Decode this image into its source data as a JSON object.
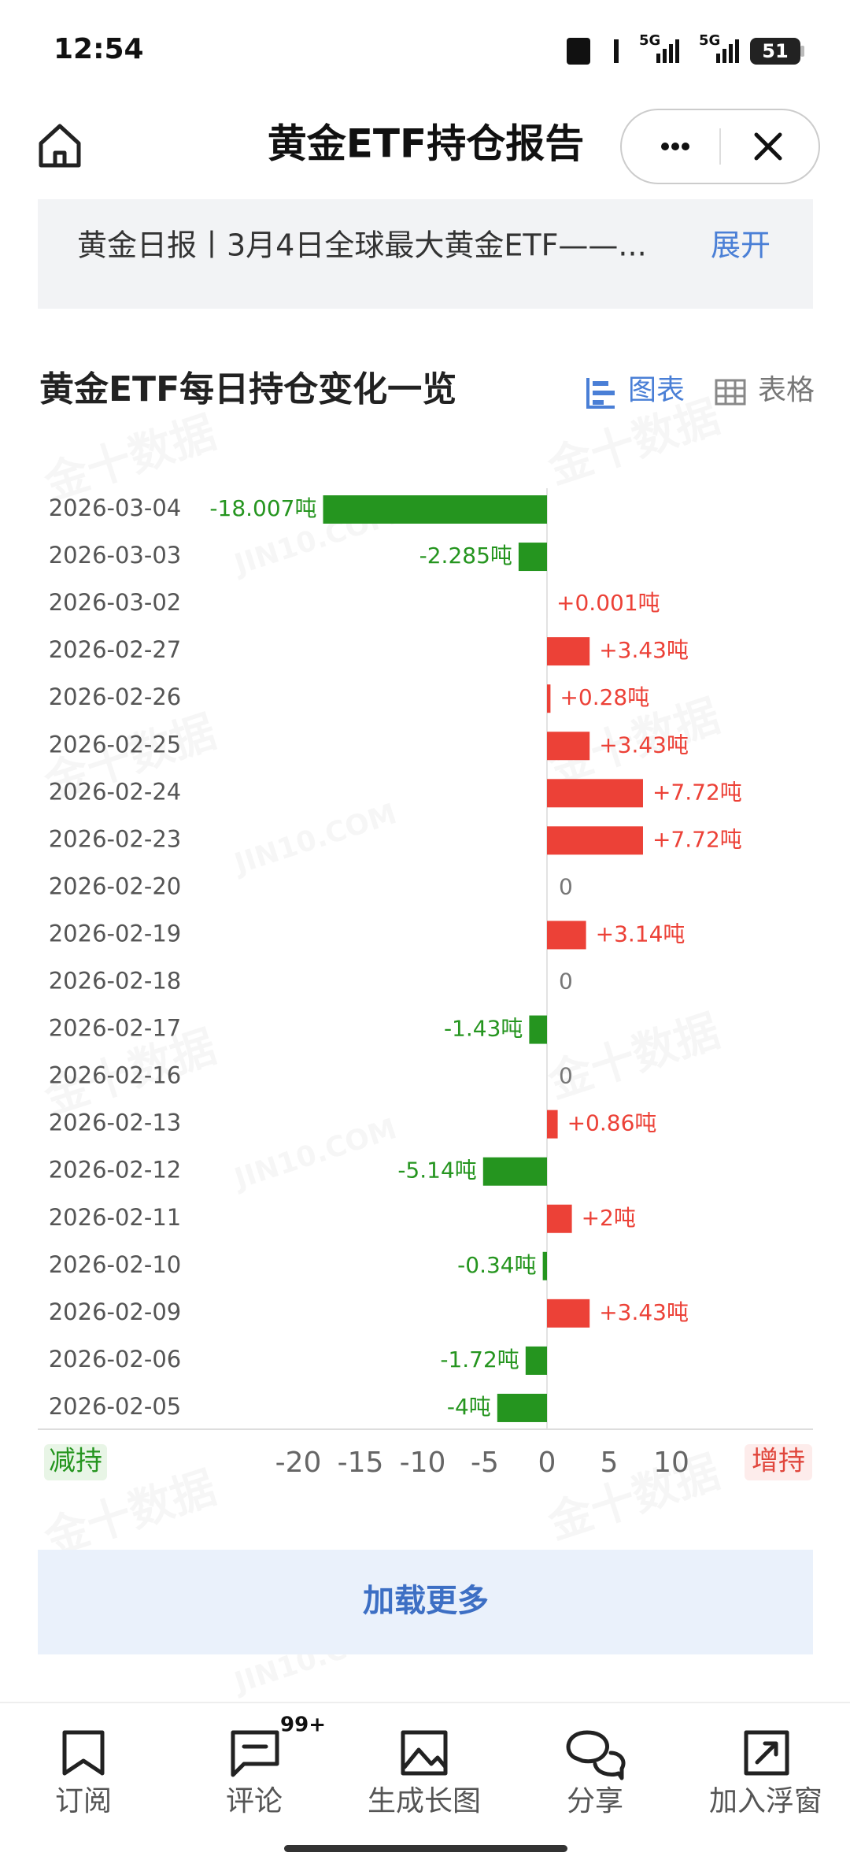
{
  "status_bar": {
    "time": "12:54",
    "network": [
      "5G",
      "5G"
    ],
    "battery": "51"
  },
  "header": {
    "title": "黄金ETF持仓报告"
  },
  "notice": {
    "text": "黄金日报丨3月4日全球最大黄金ETF——...",
    "action": "展开"
  },
  "section": {
    "title": "黄金ETF每日持仓变化一览",
    "tabs": [
      "图表",
      "表格"
    ]
  },
  "watermark": {
    "text": "金十数据",
    "url": "JIN10.COM"
  },
  "chart_data": {
    "type": "bar",
    "orientation": "horizontal",
    "categories": [
      "2026-03-04",
      "2026-03-03",
      "2026-03-02",
      "2026-02-27",
      "2026-02-26",
      "2026-02-25",
      "2026-02-24",
      "2026-02-23",
      "2026-02-20",
      "2026-02-19",
      "2026-02-18",
      "2026-02-17",
      "2026-02-16",
      "2026-02-13",
      "2026-02-12",
      "2026-02-11",
      "2026-02-10",
      "2026-02-09",
      "2026-02-06",
      "2026-02-05"
    ],
    "values": [
      -18.007,
      -2.285,
      0.001,
      3.43,
      0.28,
      3.43,
      7.72,
      7.72,
      0,
      3.14,
      0,
      -1.43,
      0,
      0.86,
      -5.14,
      2,
      -0.34,
      3.43,
      -1.72,
      -4
    ],
    "value_labels": [
      "-18.007吨",
      "-2.285吨",
      "+0.001吨",
      "+3.43吨",
      "+0.28吨",
      "+3.43吨",
      "+7.72吨",
      "+7.72吨",
      "0",
      "+3.14吨",
      "0",
      "-1.43吨",
      "0",
      "+0.86吨",
      "-5.14吨",
      "+2吨",
      "-0.34吨",
      "+3.43吨",
      "-1.72吨",
      "-4吨"
    ],
    "xlim": [
      -20,
      10
    ],
    "xticks": [
      -20,
      -15,
      -10,
      -5,
      0,
      5,
      10
    ],
    "positive_color": "#ec4137",
    "negative_color": "#25951f",
    "zero_color": "#777777",
    "negative_label": "减持",
    "positive_label": "增持"
  },
  "load_more": "加载更多",
  "nav": {
    "items": [
      "订阅",
      "评论",
      "生成长图",
      "分享",
      "加入浮窗"
    ],
    "badge": "99+"
  }
}
